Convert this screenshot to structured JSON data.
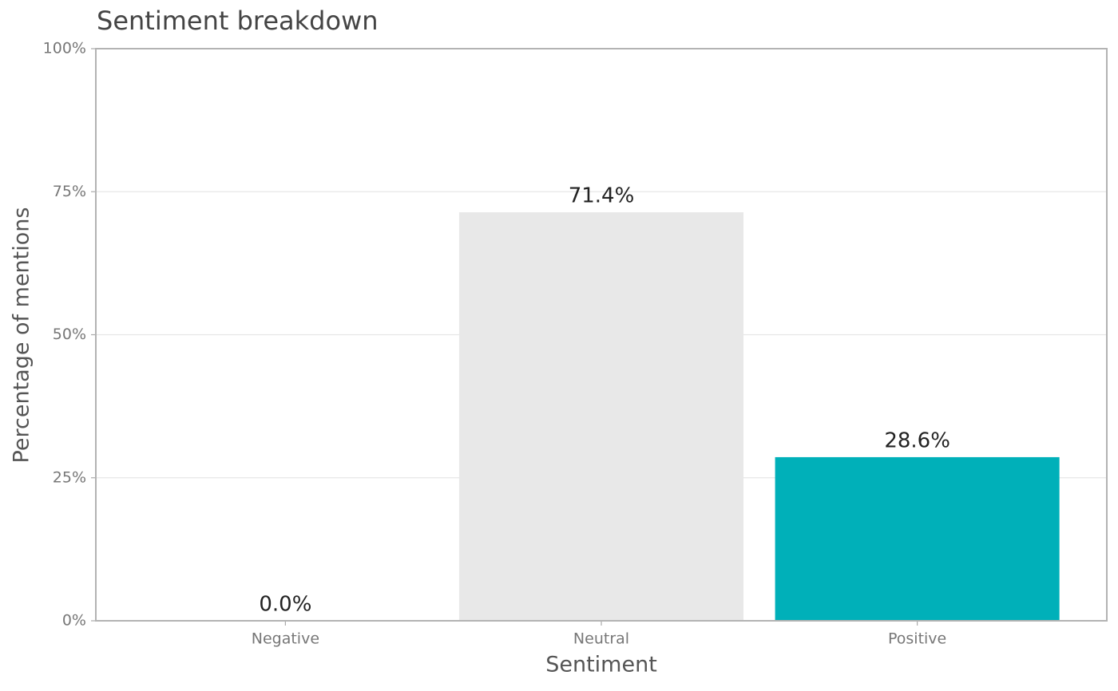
{
  "chart_data": {
    "type": "bar",
    "title": "Sentiment breakdown",
    "x_label": "Sentiment",
    "y_label": "Percentage of mentions",
    "categories": [
      "Negative",
      "Neutral",
      "Positive"
    ],
    "values": [
      0,
      71.4,
      28.6
    ],
    "value_labels": [
      "0.0%",
      "71.4%",
      "28.6%"
    ],
    "colors": [
      "#e05a5a",
      "#e8e8e8",
      "#00b0b9"
    ],
    "ylim": [
      0,
      100
    ],
    "yticks": [
      {
        "value": 0,
        "label": "0%"
      },
      {
        "value": 25,
        "label": "25%"
      },
      {
        "value": 50,
        "label": "50%"
      },
      {
        "value": 75,
        "label": "75%"
      },
      {
        "value": 100,
        "label": "100%"
      }
    ],
    "grid": true
  }
}
